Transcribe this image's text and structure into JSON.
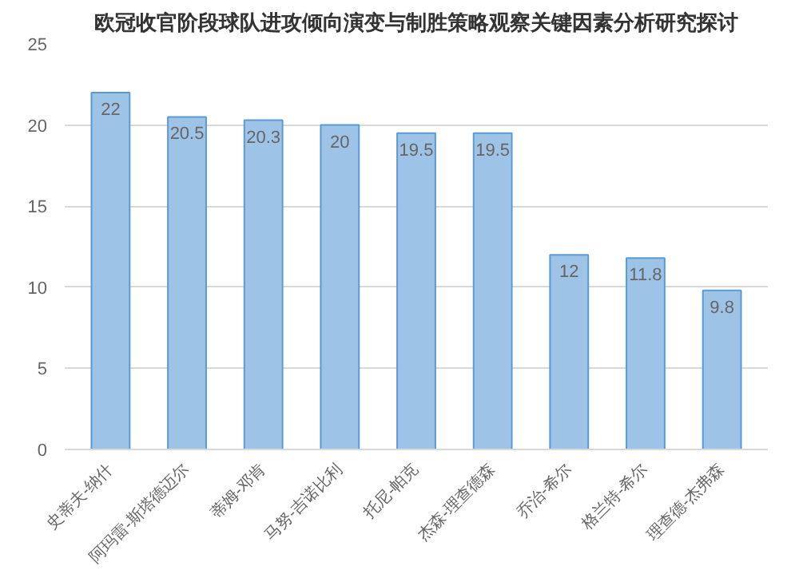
{
  "chart_data": {
    "type": "bar",
    "title": "欧冠收官阶段球队进攻倾向演变与制胜策略观察关键因素分析研究探讨",
    "categories": [
      "史蒂夫-纳什",
      "阿玛雷-斯塔德迈尔",
      "蒂姆-邓肯",
      "马努-吉诺比利",
      "托尼-帕克",
      "杰森-理查德森",
      "乔治-希尔",
      "格兰特-希尔",
      "理查德-杰弗森"
    ],
    "values": [
      22,
      20.5,
      20.3,
      20,
      19.5,
      19.5,
      12,
      11.8,
      9.8
    ],
    "color": "#9dc3e6",
    "ylim": [
      0,
      25
    ],
    "yticks": [
      0,
      5,
      10,
      15,
      20,
      25
    ],
    "grid": "y",
    "data_labels": true
  }
}
